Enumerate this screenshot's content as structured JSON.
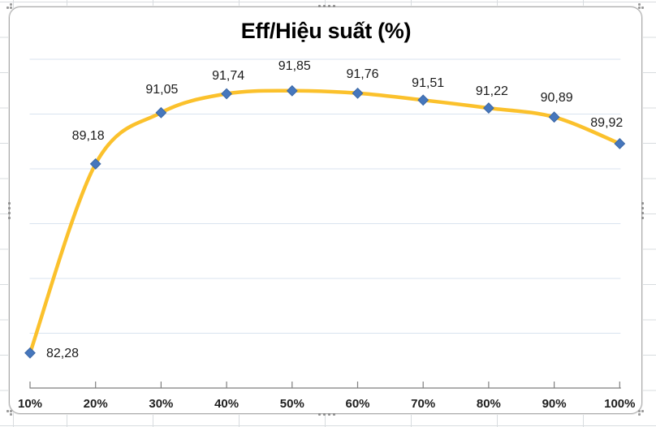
{
  "chart_data": {
    "type": "line",
    "title": "Eff/Hiệu suất (%)",
    "categories": [
      "10%",
      "20%",
      "30%",
      "40%",
      "50%",
      "60%",
      "70%",
      "80%",
      "90%",
      "100%"
    ],
    "series": [
      {
        "name": "Eff/Hiệu suất (%)",
        "values": [
          82.28,
          89.18,
          91.05,
          91.74,
          91.85,
          91.76,
          91.51,
          91.22,
          90.89,
          89.92
        ]
      }
    ],
    "data_labels": [
      "82,28",
      "89,18",
      "91,05",
      "91,74",
      "91,85",
      "91,76",
      "91,51",
      "91,22",
      "90,89",
      "89,92"
    ],
    "xlabel": "",
    "ylabel": "",
    "ylim": [
      81,
      93
    ],
    "y_major_unit": 2,
    "grid": "horizontal",
    "legend": "none",
    "smooth": true,
    "marker": "diamond",
    "colors": {
      "line": "#FBC12C",
      "marker_fill": "#4677BD",
      "marker_border": "#3B67A5",
      "gridline": "#D9E3EF",
      "axis": "#7F7F7F",
      "label_text": "#1B1B1B",
      "title_text": "#000000"
    }
  }
}
